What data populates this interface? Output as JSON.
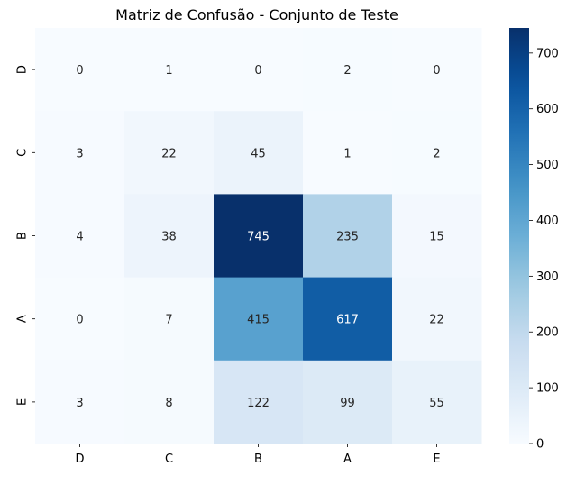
{
  "chart_data": {
    "type": "heatmap",
    "title": "Matriz de Confusão - Conjunto de Teste",
    "xlabel": "",
    "ylabel": "",
    "x_categories": [
      "D",
      "C",
      "B",
      "A",
      "E"
    ],
    "y_categories": [
      "D",
      "C",
      "B",
      "A",
      "E"
    ],
    "values": [
      [
        0,
        1,
        0,
        2,
        0
      ],
      [
        3,
        22,
        45,
        1,
        2
      ],
      [
        4,
        38,
        745,
        235,
        15
      ],
      [
        0,
        7,
        415,
        617,
        22
      ],
      [
        3,
        8,
        122,
        99,
        55
      ]
    ],
    "colorbar": {
      "min": 0,
      "max": 745,
      "ticks": [
        0,
        100,
        200,
        300,
        400,
        500,
        600,
        700
      ],
      "colormap": "Blues"
    },
    "grid": false,
    "legend": "none"
  }
}
